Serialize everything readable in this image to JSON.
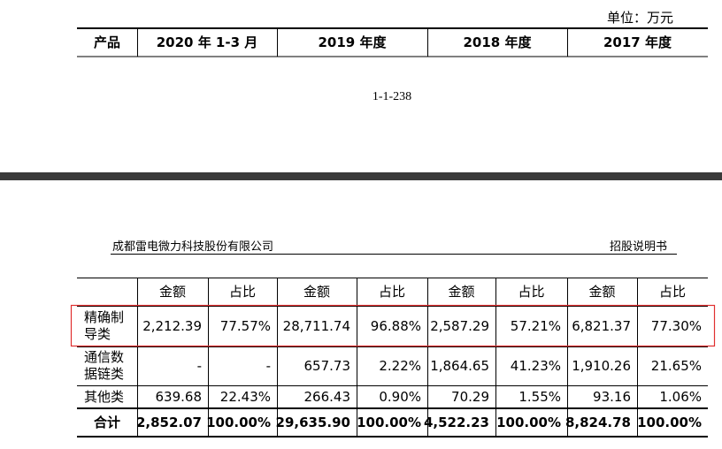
{
  "top_page": {
    "unit": "单位：万元",
    "columns": [
      "产品",
      "2020 年 1-3 月",
      "2019 年度",
      "2018 年度",
      "2017 年度"
    ],
    "page_number": "1-1-238"
  },
  "next_page": {
    "company": "成都雷电微力科技股份有限公司",
    "document": "招股说明书",
    "table": {
      "subheader": [
        "金额",
        "占比",
        "金额",
        "占比",
        "金额",
        "占比",
        "金额",
        "占比"
      ],
      "rows": [
        [
          "精确制导类",
          "2,212.39",
          "77.57%",
          "28,711.74",
          "96.88%",
          "2,587.29",
          "57.21%",
          "6,821.37",
          "77.30%"
        ],
        [
          "通信数据链类",
          "-",
          "-",
          "657.73",
          "2.22%",
          "1,864.65",
          "41.23%",
          "1,910.26",
          "21.65%"
        ],
        [
          "其他类",
          "639.68",
          "22.43%",
          "266.43",
          "0.90%",
          "70.29",
          "1.55%",
          "93.16",
          "1.06%"
        ],
        [
          "合计",
          "2,852.07",
          "100.00%",
          "29,635.90",
          "100.00%",
          "4,522.23",
          "100.00%",
          "8,824.78",
          "100.00%"
        ]
      ]
    }
  }
}
